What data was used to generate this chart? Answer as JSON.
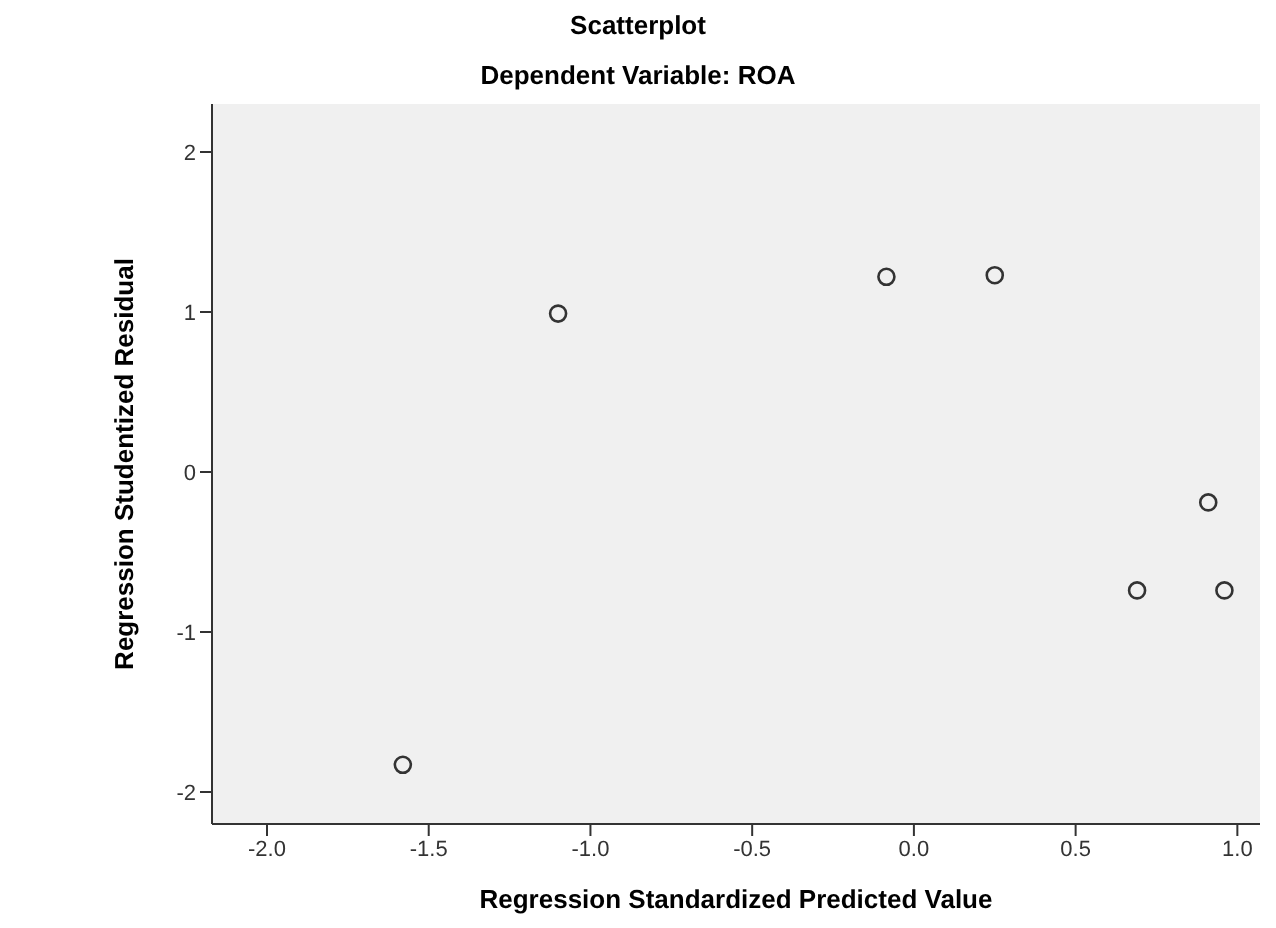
{
  "chart_data": {
    "type": "scatter",
    "title": "Scatterplot",
    "subtitle": "Dependent Variable: ROA",
    "xlabel": "Regression Standardized Predicted Value",
    "ylabel": "Regression Studentized Residual",
    "x": [
      -1.58,
      -1.1,
      -0.085,
      0.25,
      0.69,
      0.91,
      0.96
    ],
    "values": [
      -1.83,
      0.99,
      1.22,
      1.23,
      -0.74,
      -0.19,
      -0.74
    ],
    "color": "#333333",
    "marker": "circle",
    "grid": false,
    "legend": false,
    "xlim": [
      -2.17,
      1.07
    ],
    "xticks": [
      {
        "value": -2,
        "label": "-2.0"
      },
      {
        "value": -1.5,
        "label": "-1.5"
      },
      {
        "value": -1,
        "label": "-1.0"
      },
      {
        "value": -0.5,
        "label": "-0.5"
      },
      {
        "value": 0,
        "label": "0.0"
      },
      {
        "value": 0.5,
        "label": "0.5"
      },
      {
        "value": 1,
        "label": "1.0"
      }
    ],
    "ylim": [
      -2.2,
      2.3
    ],
    "yticks": [
      -2,
      -1,
      0,
      1,
      2
    ]
  }
}
